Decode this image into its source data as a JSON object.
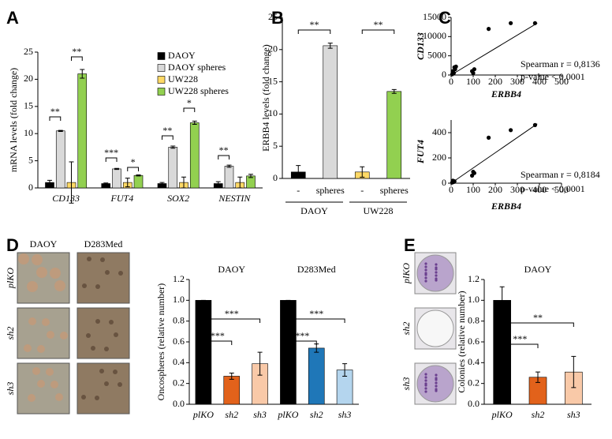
{
  "panel_labels": [
    "A",
    "B",
    "C",
    "D",
    "E"
  ],
  "image_labels": {
    "D": {
      "columns": [
        "DAOY",
        "D283Med"
      ],
      "rows": [
        "plKO",
        "sh2",
        "sh3"
      ]
    },
    "E": {
      "rows": [
        "plKO",
        "sh2",
        "sh3"
      ]
    }
  },
  "chart_data": [
    {
      "type": "bar",
      "ylabel": "mRNA levels (fold change)",
      "categories": [
        "CD133",
        "FUT4",
        "SOX2",
        "NESTIN"
      ],
      "series": [
        {
          "name": "DAOY",
          "color": "#000000",
          "values": [
            1.0,
            0.8,
            0.8,
            0.8
          ],
          "errors": [
            0.4,
            0.1,
            0.2,
            0.35
          ]
        },
        {
          "name": "DAOY spheres",
          "color": "#d9d9d9",
          "values": [
            10.5,
            3.5,
            7.5,
            4.0
          ],
          "errors": [
            0.1,
            0.1,
            0.2,
            0.2
          ]
        },
        {
          "name": "UW228",
          "color": "#ffd966",
          "values": [
            1.0,
            1.0,
            1.0,
            1.0
          ],
          "errors": [
            3.8,
            0.8,
            1.0,
            1.0
          ]
        },
        {
          "name": "UW228 spheres",
          "color": "#92d050",
          "values": [
            21,
            2.3,
            12,
            2.2
          ],
          "errors": [
            0.8,
            0.1,
            0.3,
            0.3
          ]
        }
      ],
      "ylim": [
        0,
        25
      ],
      "yticks": [
        0,
        5,
        10,
        15,
        20,
        25
      ],
      "legend": "upper right",
      "annotations": [
        "**",
        "**",
        "***",
        "*",
        "**",
        "*",
        "**"
      ]
    },
    {
      "type": "bar",
      "ylabel": "ERBB4 levels (fold change)",
      "categories": [
        "-",
        "spheres",
        "-",
        "spheres"
      ],
      "groups": [
        "DAOY",
        "UW228"
      ],
      "values": [
        1,
        20.6,
        1,
        13.5
      ],
      "errors": [
        1,
        0.4,
        0.8,
        0.3
      ],
      "colors": [
        "#000000",
        "#d9d9d9",
        "#ffd966",
        "#92d050"
      ],
      "ylim": [
        0,
        25
      ],
      "yticks": [
        0,
        5,
        10,
        15,
        20,
        25
      ],
      "annotations": [
        "**",
        "**"
      ]
    },
    {
      "type": "scatter",
      "xlabel": "ERBB4",
      "ylabel": "CD133",
      "x": [
        5,
        8,
        12,
        15,
        18,
        22,
        95,
        100,
        105,
        170,
        270,
        380
      ],
      "y": [
        200,
        1000,
        500,
        2000,
        1500,
        2200,
        1000,
        500,
        1500,
        12000,
        13500,
        13500
      ],
      "trendline": {
        "x": [
          0,
          390
        ],
        "y": [
          0,
          13500
        ]
      },
      "xlim": [
        0,
        500
      ],
      "xticks": [
        0,
        100,
        200,
        300,
        400,
        500
      ],
      "ylim": [
        0,
        15000
      ],
      "yticks": [
        0,
        5000,
        10000,
        15000
      ],
      "annotations": [
        "Spearman r = 0,8136",
        "p-value < 0,0001"
      ]
    },
    {
      "type": "scatter",
      "xlabel": "ERBB4",
      "ylabel": "FUT4",
      "x": [
        5,
        8,
        12,
        15,
        95,
        100,
        105,
        170,
        270,
        380
      ],
      "y": [
        5,
        20,
        10,
        15,
        60,
        90,
        80,
        360,
        420,
        460
      ],
      "trendline": {
        "x": [
          0,
          390
        ],
        "y": [
          0,
          470
        ]
      },
      "xlim": [
        0,
        500
      ],
      "xticks": [
        0,
        100,
        200,
        300,
        400,
        500
      ],
      "ylim": [
        0,
        500
      ],
      "yticks": [
        0,
        200,
        400
      ],
      "annotations": [
        "Spearman r = 0,8184",
        "p-value < 0,0001"
      ]
    },
    {
      "type": "bar",
      "ylabel": "Oncospheres (relative number)",
      "categories": [
        "plKO",
        "sh2",
        "sh3",
        "plKO",
        "sh2",
        "sh3"
      ],
      "groups": [
        "DAOY",
        "D283Med"
      ],
      "values": [
        1.0,
        0.27,
        0.39,
        1.0,
        0.54,
        0.33
      ],
      "errors": [
        0,
        0.03,
        0.11,
        0,
        0.04,
        0.06
      ],
      "colors": [
        "#000000",
        "#e2621b",
        "#f9c9a8",
        "#000000",
        "#1f77b8",
        "#b4d5ee"
      ],
      "ylim": [
        0,
        1.2
      ],
      "yticks": [
        {
          "value": 0,
          "label": "0.0"
        },
        0.2,
        0.4,
        0.6,
        0.8,
        {
          "value": 1,
          "label": "1.0"
        },
        1.2
      ],
      "annotations": [
        "***",
        "***",
        "***",
        "***"
      ]
    },
    {
      "type": "bar",
      "title": "DAOY",
      "ylabel": "Colonies (relative number)",
      "categories": [
        "plKO",
        "sh2",
        "sh3"
      ],
      "values": [
        1.0,
        0.26,
        0.31
      ],
      "errors": [
        0.13,
        0.05,
        0.15
      ],
      "colors": [
        "#000000",
        "#e2621b",
        "#f9c9a8"
      ],
      "ylim": [
        0,
        1.2
      ],
      "yticks": [
        {
          "value": 0,
          "label": "0.0"
        },
        0.2,
        0.4,
        0.6,
        0.8,
        {
          "value": 1,
          "label": "1.0"
        },
        1.2
      ],
      "annotations": [
        "***",
        "**"
      ]
    }
  ]
}
